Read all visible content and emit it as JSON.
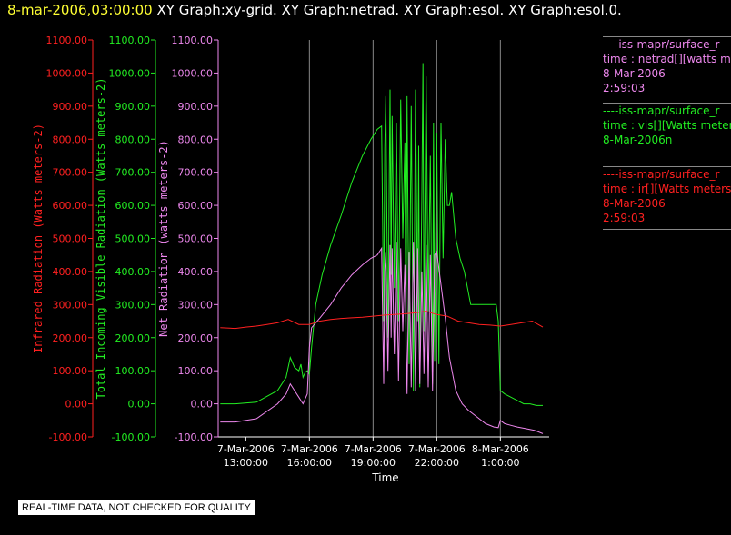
{
  "title": {
    "date": "8-mar-2006,03:00:00",
    "graphs": "XY Graph:xy-grid.  XY Graph:netrad.  XY Graph:esol.  XY Graph:esol.0."
  },
  "colors": {
    "ir": "#ff2020",
    "vis": "#22ee22",
    "net": "#ee88ee",
    "grid": "#888888",
    "axis": "#ffffff"
  },
  "legend": [
    {
      "lines": [
        "----iss-mapr/surface_r",
        "time : netrad[][watts m",
        "8-Mar-2006",
        "2:59:03"
      ],
      "color": "#ee88ee"
    },
    {
      "lines": [
        "----iss-mapr/surface_r",
        "time : vis[][Watts meter",
        "8-Mar-2006n"
      ],
      "color": "#22ee22"
    },
    {
      "lines": [
        "----iss-mapr/surface_r",
        "time : ir[][Watts meters",
        "8-Mar-2006",
        "2:59:03"
      ],
      "color": "#ff2020"
    }
  ],
  "disclaimer": "REAL-TIME DATA, NOT CHECKED FOR QUALITY",
  "chart_data": {
    "type": "line",
    "xlabel": "Time",
    "x_ticks": [
      {
        "x": 13,
        "label": [
          "7-Mar-2006",
          "13:00:00"
        ]
      },
      {
        "x": 16,
        "label": [
          "7-Mar-2006",
          "16:00:00"
        ]
      },
      {
        "x": 19,
        "label": [
          "7-Mar-2006",
          "19:00:00"
        ]
      },
      {
        "x": 22,
        "label": [
          "7-Mar-2006",
          "22:00:00"
        ]
      },
      {
        "x": 25,
        "label": [
          "8-Mar-2006",
          "1:00:00"
        ]
      }
    ],
    "xlim": [
      11.7,
      27.3
    ],
    "grid_x": [
      16.0,
      19.0,
      22.0,
      25.0
    ],
    "y_axes": [
      {
        "label": "Infrared Radiation (Watts meters-2)",
        "color": "#ff2020",
        "ticks": [
          "1100.00",
          "1000.00",
          "900.00",
          "800.00",
          "700.00",
          "600.00",
          "500.00",
          "400.00",
          "300.00",
          "200.00",
          "100.00",
          "0.00",
          "-100.00"
        ]
      },
      {
        "label": "Total Incoming Visible Radiation (Watts meters-2)",
        "color": "#22ee22",
        "ticks": [
          "1100.00",
          "1000.00",
          "900.00",
          "800.00",
          "700.00",
          "600.00",
          "500.00",
          "400.00",
          "300.00",
          "200.00",
          "100.00",
          "0.00",
          "-100.00"
        ]
      },
      {
        "label": "Net Radiation (watts meters-2)",
        "color": "#ee88ee",
        "ticks": [
          "1100.00",
          "1000.00",
          "900.00",
          "800.00",
          "700.00",
          "600.00",
          "500.00",
          "400.00",
          "300.00",
          "200.00",
          "100.00",
          "0.00",
          "-100.00"
        ]
      }
    ],
    "ylim": [
      -100,
      1100
    ],
    "series": [
      {
        "key": "vis",
        "color": "#22ee22",
        "x": [
          11.8,
          12.5,
          13.5,
          14.5,
          14.9,
          15.1,
          15.3,
          15.5,
          15.6,
          15.7,
          15.8,
          15.9,
          16.0,
          16.1,
          16.3,
          16.6,
          17.0,
          17.5,
          18.0,
          18.5,
          18.9,
          19.2,
          19.4,
          19.5,
          19.55,
          19.6,
          19.7,
          19.8,
          19.85,
          19.9,
          20.0,
          20.1,
          20.2,
          20.3,
          20.4,
          20.5,
          20.55,
          20.6,
          20.7,
          20.8,
          20.9,
          21.0,
          21.1,
          21.15,
          21.2,
          21.3,
          21.35,
          21.4,
          21.5,
          21.6,
          21.7,
          21.8,
          21.85,
          21.9,
          22.0,
          22.1,
          22.2,
          22.3,
          22.4,
          22.5,
          22.6,
          22.7,
          22.9,
          23.1,
          23.3,
          23.6,
          23.9,
          24.2,
          24.5,
          24.8,
          24.9,
          25.0,
          25.2,
          25.5,
          25.8,
          26.1,
          26.4,
          26.7,
          27.0
        ],
        "y": [
          0,
          0,
          5,
          40,
          80,
          140,
          110,
          100,
          120,
          80,
          95,
          100,
          90,
          170,
          300,
          390,
          480,
          570,
          670,
          750,
          800,
          830,
          840,
          250,
          770,
          930,
          200,
          950,
          390,
          870,
          350,
          850,
          250,
          920,
          500,
          790,
          150,
          930,
          120,
          900,
          40,
          950,
          250,
          780,
          50,
          640,
          1030,
          220,
          990,
          280,
          750,
          60,
          850,
          130,
          820,
          120,
          850,
          440,
          800,
          600,
          600,
          640,
          500,
          440,
          400,
          300,
          300,
          300,
          300,
          300,
          250,
          40,
          30,
          20,
          10,
          0,
          0,
          -5,
          -5
        ]
      },
      {
        "key": "net",
        "color": "#ee88ee",
        "x": [
          11.8,
          12.5,
          13.5,
          14.5,
          14.9,
          15.1,
          15.3,
          15.5,
          15.7,
          15.9,
          16.0,
          16.1,
          16.5,
          17.0,
          17.5,
          18.0,
          18.5,
          18.9,
          19.2,
          19.4,
          19.5,
          19.55,
          19.6,
          19.7,
          19.8,
          19.85,
          19.9,
          20.0,
          20.1,
          20.2,
          20.3,
          20.4,
          20.5,
          20.6,
          20.7,
          20.8,
          20.9,
          21.0,
          21.1,
          21.2,
          21.3,
          21.4,
          21.5,
          21.6,
          21.7,
          21.8,
          21.9,
          22.0,
          22.2,
          22.4,
          22.6,
          22.9,
          23.2,
          23.5,
          23.9,
          24.3,
          24.7,
          24.9,
          25.0,
          25.2,
          25.5,
          25.8,
          26.2,
          26.6,
          27.0
        ],
        "y": [
          -55,
          -55,
          -45,
          0,
          30,
          60,
          40,
          20,
          0,
          30,
          170,
          230,
          260,
          300,
          350,
          390,
          420,
          440,
          450,
          470,
          60,
          400,
          460,
          100,
          480,
          200,
          470,
          150,
          490,
          70,
          470,
          220,
          420,
          30,
          460,
          50,
          490,
          40,
          470,
          60,
          400,
          90,
          480,
          50,
          450,
          40,
          450,
          460,
          360,
          260,
          140,
          40,
          0,
          -20,
          -40,
          -60,
          -70,
          -72,
          -50,
          -60,
          -65,
          -70,
          -75,
          -80,
          -90
        ]
      },
      {
        "key": "ir",
        "color": "#ff2020",
        "x": [
          11.8,
          12.5,
          13.0,
          13.5,
          14.0,
          14.5,
          15.0,
          15.5,
          16.0,
          16.5,
          17.0,
          17.5,
          18.0,
          18.5,
          19.0,
          19.5,
          20.0,
          20.5,
          21.0,
          21.5,
          22.0,
          22.5,
          23.0,
          23.5,
          24.0,
          24.5,
          25.0,
          25.5,
          26.0,
          26.5,
          27.0
        ],
        "y": [
          230,
          228,
          232,
          235,
          240,
          245,
          255,
          240,
          240,
          250,
          255,
          258,
          260,
          262,
          265,
          268,
          270,
          272,
          275,
          280,
          270,
          265,
          250,
          245,
          240,
          238,
          235,
          240,
          245,
          250,
          232
        ]
      }
    ]
  }
}
